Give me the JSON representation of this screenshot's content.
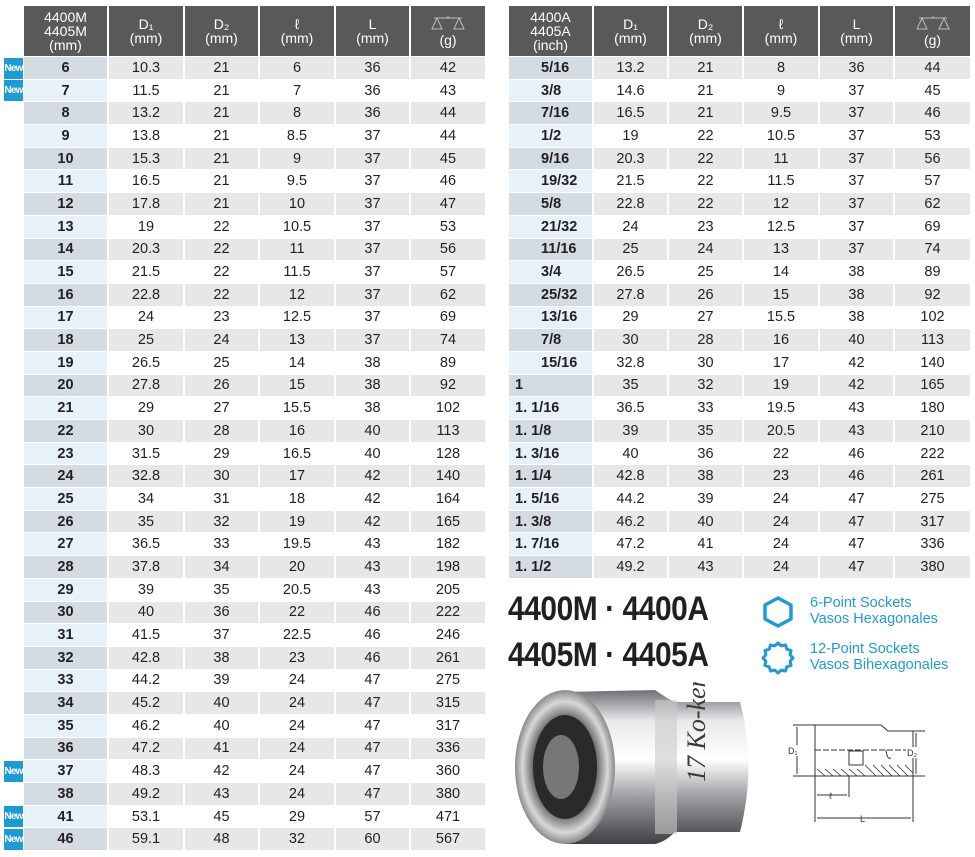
{
  "metric_table": {
    "headers": [
      "4400M\n4405M\n(mm)",
      "D₁\n(mm)",
      "D₂\n(mm)",
      "ℓ\n(mm)",
      "L\n(mm)",
      "(g)"
    ],
    "weight_icon": "balance-scale-icon",
    "new_label": "New",
    "rows": [
      {
        "size": "6",
        "d1": "10.3",
        "d2": "21",
        "l": "6",
        "L": "36",
        "g": "42",
        "new": true
      },
      {
        "size": "7",
        "d1": "11.5",
        "d2": "21",
        "l": "7",
        "L": "36",
        "g": "43",
        "new": true
      },
      {
        "size": "8",
        "d1": "13.2",
        "d2": "21",
        "l": "8",
        "L": "36",
        "g": "44"
      },
      {
        "size": "9",
        "d1": "13.8",
        "d2": "21",
        "l": "8.5",
        "L": "37",
        "g": "44"
      },
      {
        "size": "10",
        "d1": "15.3",
        "d2": "21",
        "l": "9",
        "L": "37",
        "g": "45"
      },
      {
        "size": "11",
        "d1": "16.5",
        "d2": "21",
        "l": "9.5",
        "L": "37",
        "g": "46"
      },
      {
        "size": "12",
        "d1": "17.8",
        "d2": "21",
        "l": "10",
        "L": "37",
        "g": "47"
      },
      {
        "size": "13",
        "d1": "19",
        "d2": "22",
        "l": "10.5",
        "L": "37",
        "g": "53"
      },
      {
        "size": "14",
        "d1": "20.3",
        "d2": "22",
        "l": "11",
        "L": "37",
        "g": "56"
      },
      {
        "size": "15",
        "d1": "21.5",
        "d2": "22",
        "l": "11.5",
        "L": "37",
        "g": "57"
      },
      {
        "size": "16",
        "d1": "22.8",
        "d2": "22",
        "l": "12",
        "L": "37",
        "g": "62"
      },
      {
        "size": "17",
        "d1": "24",
        "d2": "23",
        "l": "12.5",
        "L": "37",
        "g": "69"
      },
      {
        "size": "18",
        "d1": "25",
        "d2": "24",
        "l": "13",
        "L": "37",
        "g": "74"
      },
      {
        "size": "19",
        "d1": "26.5",
        "d2": "25",
        "l": "14",
        "L": "38",
        "g": "89"
      },
      {
        "size": "20",
        "d1": "27.8",
        "d2": "26",
        "l": "15",
        "L": "38",
        "g": "92"
      },
      {
        "size": "21",
        "d1": "29",
        "d2": "27",
        "l": "15.5",
        "L": "38",
        "g": "102"
      },
      {
        "size": "22",
        "d1": "30",
        "d2": "28",
        "l": "16",
        "L": "40",
        "g": "113"
      },
      {
        "size": "23",
        "d1": "31.5",
        "d2": "29",
        "l": "16.5",
        "L": "40",
        "g": "128"
      },
      {
        "size": "24",
        "d1": "32.8",
        "d2": "30",
        "l": "17",
        "L": "42",
        "g": "140"
      },
      {
        "size": "25",
        "d1": "34",
        "d2": "31",
        "l": "18",
        "L": "42",
        "g": "164"
      },
      {
        "size": "26",
        "d1": "35",
        "d2": "32",
        "l": "19",
        "L": "42",
        "g": "165"
      },
      {
        "size": "27",
        "d1": "36.5",
        "d2": "33",
        "l": "19.5",
        "L": "43",
        "g": "182"
      },
      {
        "size": "28",
        "d1": "37.8",
        "d2": "34",
        "l": "20",
        "L": "43",
        "g": "198"
      },
      {
        "size": "29",
        "d1": "39",
        "d2": "35",
        "l": "20.5",
        "L": "43",
        "g": "205"
      },
      {
        "size": "30",
        "d1": "40",
        "d2": "36",
        "l": "22",
        "L": "46",
        "g": "222"
      },
      {
        "size": "31",
        "d1": "41.5",
        "d2": "37",
        "l": "22.5",
        "L": "46",
        "g": "246"
      },
      {
        "size": "32",
        "d1": "42.8",
        "d2": "38",
        "l": "23",
        "L": "46",
        "g": "261"
      },
      {
        "size": "33",
        "d1": "44.2",
        "d2": "39",
        "l": "24",
        "L": "47",
        "g": "275"
      },
      {
        "size": "34",
        "d1": "45.2",
        "d2": "40",
        "l": "24",
        "L": "47",
        "g": "315"
      },
      {
        "size": "35",
        "d1": "46.2",
        "d2": "40",
        "l": "24",
        "L": "47",
        "g": "317"
      },
      {
        "size": "36",
        "d1": "47.2",
        "d2": "41",
        "l": "24",
        "L": "47",
        "g": "336"
      },
      {
        "size": "37",
        "d1": "48.3",
        "d2": "42",
        "l": "24",
        "L": "47",
        "g": "360",
        "new": true
      },
      {
        "size": "38",
        "d1": "49.2",
        "d2": "43",
        "l": "24",
        "L": "47",
        "g": "380"
      },
      {
        "size": "41",
        "d1": "53.1",
        "d2": "45",
        "l": "29",
        "L": "57",
        "g": "471",
        "new": true
      },
      {
        "size": "46",
        "d1": "59.1",
        "d2": "48",
        "l": "32",
        "L": "60",
        "g": "567",
        "new": true
      }
    ]
  },
  "inch_table": {
    "headers": [
      "4400A\n4405A\n(inch)",
      "D₁\n(mm)",
      "D₂\n(mm)",
      "ℓ\n(mm)",
      "L\n(mm)",
      "(g)"
    ],
    "weight_icon": "balance-scale-icon",
    "rows": [
      {
        "size": "5/16",
        "d1": "13.2",
        "d2": "21",
        "l": "8",
        "L": "36",
        "g": "44"
      },
      {
        "size": "3/8",
        "d1": "14.6",
        "d2": "21",
        "l": "9",
        "L": "37",
        "g": "45"
      },
      {
        "size": "7/16",
        "d1": "16.5",
        "d2": "21",
        "l": "9.5",
        "L": "37",
        "g": "46"
      },
      {
        "size": "1/2",
        "d1": "19",
        "d2": "22",
        "l": "10.5",
        "L": "37",
        "g": "53"
      },
      {
        "size": "9/16",
        "d1": "20.3",
        "d2": "22",
        "l": "11",
        "L": "37",
        "g": "56"
      },
      {
        "size": "19/32",
        "d1": "21.5",
        "d2": "22",
        "l": "11.5",
        "L": "37",
        "g": "57"
      },
      {
        "size": "5/8",
        "d1": "22.8",
        "d2": "22",
        "l": "12",
        "L": "37",
        "g": "62"
      },
      {
        "size": "21/32",
        "d1": "24",
        "d2": "23",
        "l": "12.5",
        "L": "37",
        "g": "69"
      },
      {
        "size": "11/16",
        "d1": "25",
        "d2": "24",
        "l": "13",
        "L": "37",
        "g": "74"
      },
      {
        "size": "3/4",
        "d1": "26.5",
        "d2": "25",
        "l": "14",
        "L": "38",
        "g": "89"
      },
      {
        "size": "25/32",
        "d1": "27.8",
        "d2": "26",
        "l": "15",
        "L": "38",
        "g": "92"
      },
      {
        "size": "13/16",
        "d1": "29",
        "d2": "27",
        "l": "15.5",
        "L": "38",
        "g": "102"
      },
      {
        "size": "7/8",
        "d1": "30",
        "d2": "28",
        "l": "16",
        "L": "40",
        "g": "113"
      },
      {
        "size": "15/16",
        "d1": "32.8",
        "d2": "30",
        "l": "17",
        "L": "42",
        "g": "140"
      },
      {
        "size": "1",
        "d1": "35",
        "d2": "32",
        "l": "19",
        "L": "42",
        "g": "165",
        "whole": true
      },
      {
        "size": "1. 1/16",
        "d1": "36.5",
        "d2": "33",
        "l": "19.5",
        "L": "43",
        "g": "180",
        "whole": true
      },
      {
        "size": "1. 1/8",
        "d1": "39",
        "d2": "35",
        "l": "20.5",
        "L": "43",
        "g": "210",
        "whole": true
      },
      {
        "size": "1. 3/16",
        "d1": "40",
        "d2": "36",
        "l": "22",
        "L": "46",
        "g": "222",
        "whole": true
      },
      {
        "size": "1. 1/4",
        "d1": "42.8",
        "d2": "38",
        "l": "23",
        "L": "46",
        "g": "261",
        "whole": true
      },
      {
        "size": "1. 5/16",
        "d1": "44.2",
        "d2": "39",
        "l": "24",
        "L": "47",
        "g": "275",
        "whole": true
      },
      {
        "size": "1. 3/8",
        "d1": "46.2",
        "d2": "40",
        "l": "24",
        "L": "47",
        "g": "317",
        "whole": true
      },
      {
        "size": "1. 7/16",
        "d1": "47.2",
        "d2": "41",
        "l": "24",
        "L": "47",
        "g": "336",
        "whole": true
      },
      {
        "size": "1. 1/2",
        "d1": "49.2",
        "d2": "43",
        "l": "24",
        "L": "47",
        "g": "380",
        "whole": true
      }
    ]
  },
  "models": {
    "line1": "4400M · 4400A",
    "line2": "4405M · 4405A"
  },
  "legend": [
    {
      "icon": "hexagon-6-point-icon",
      "line1": "6-Point Sockets",
      "line2": "Vasos Hexagonales"
    },
    {
      "icon": "bihexagon-12-point-icon",
      "line1": "12-Point Sockets",
      "line2": "Vasos Bihexagonales"
    }
  ],
  "diagram": {
    "d1": "D₁",
    "d2": "D₂",
    "l": "ℓ",
    "L": "L"
  },
  "colors": {
    "header": "#58595b",
    "accent": "#1d9bd7",
    "row_gray": "#e7e7e9",
    "size_cell_gray": "#d3dbe3",
    "size_cell_light": "#e6f1f9"
  }
}
